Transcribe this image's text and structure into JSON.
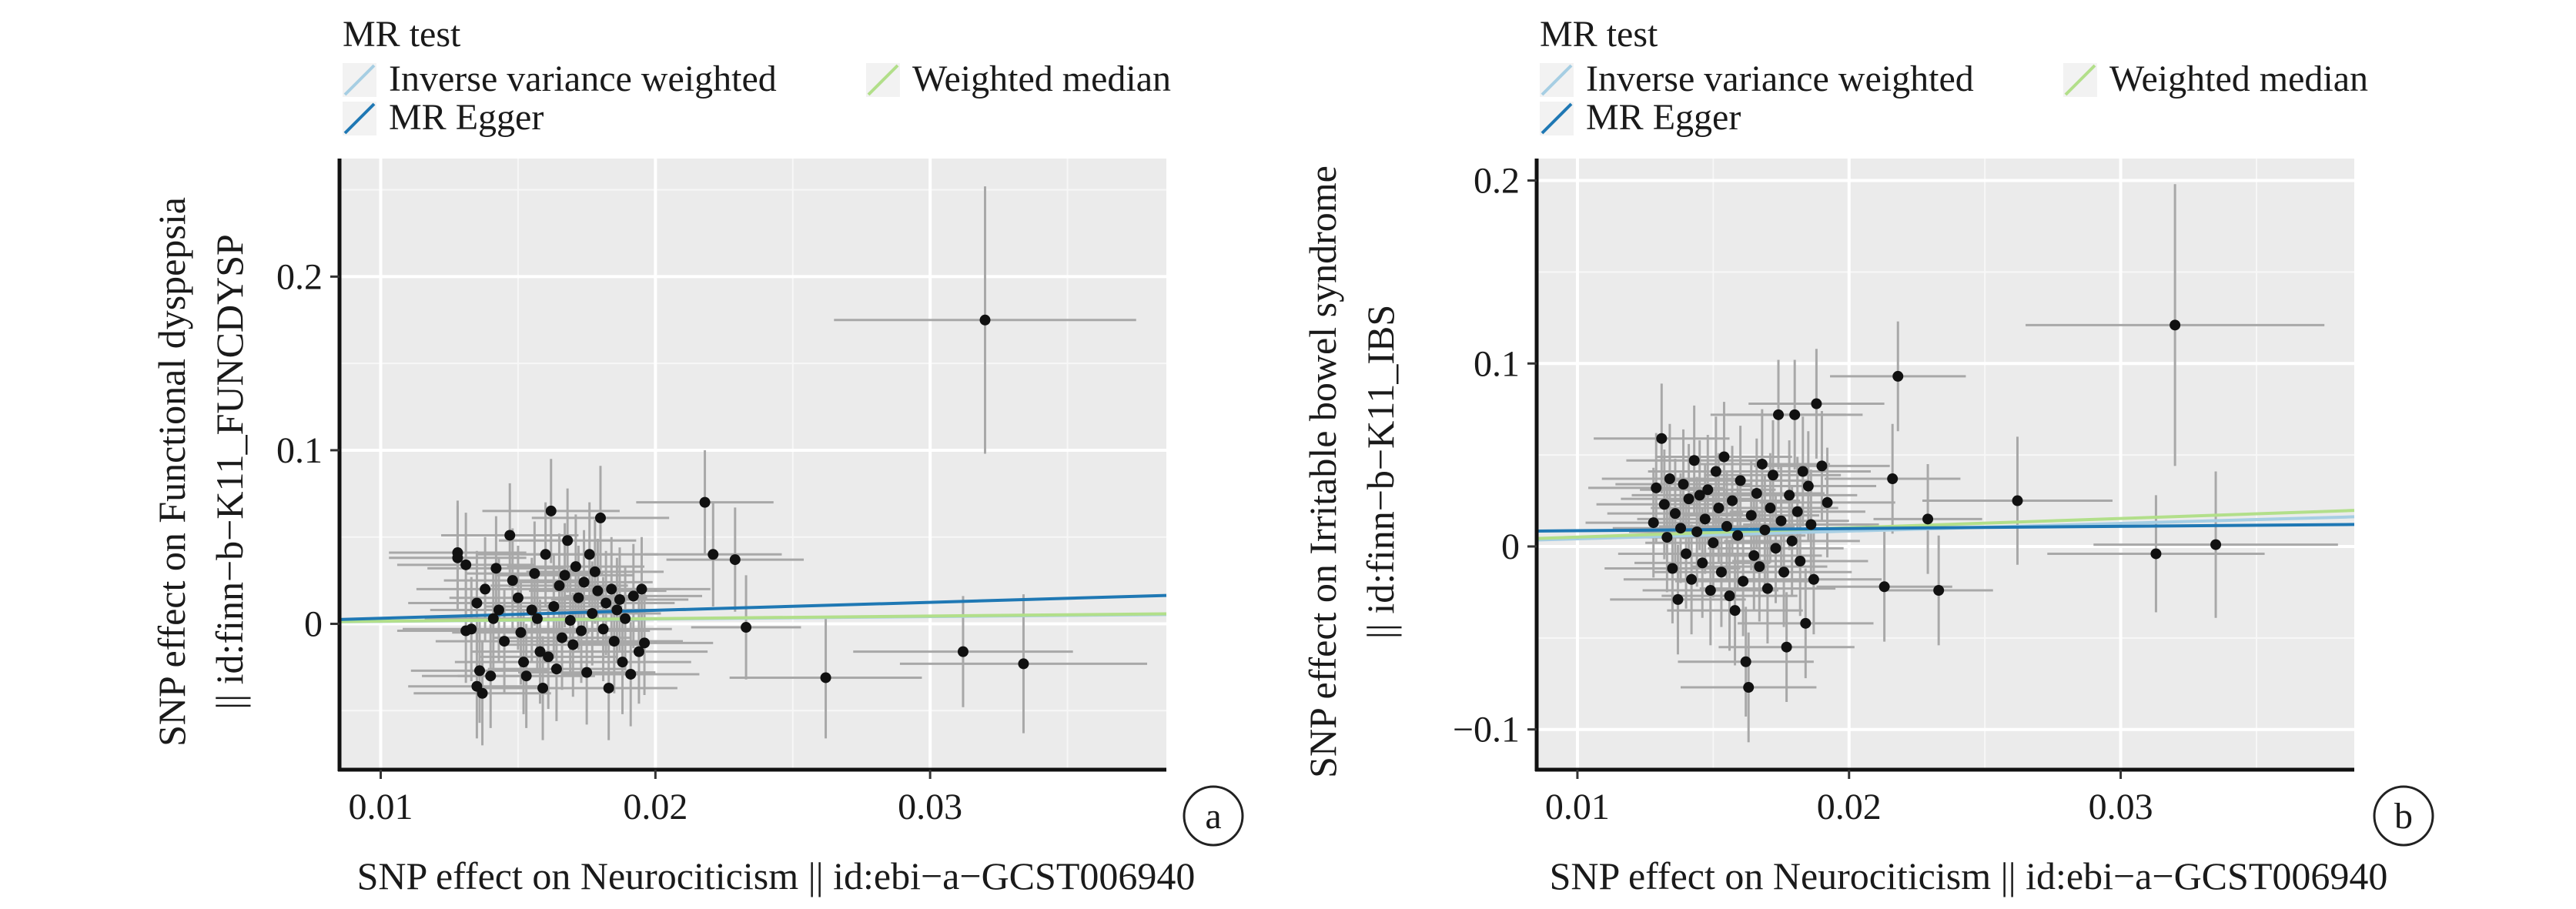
{
  "chart_data": [
    {
      "type": "scatter",
      "panel_label": "a",
      "legend": {
        "title": "MR test",
        "placement": "top-left",
        "entries": [
          {
            "name": "Inverse variance weighted",
            "color": "#a6cee3"
          },
          {
            "name": "Weighted median",
            "color": "#b2df8a"
          },
          {
            "name": "MR Egger",
            "color": "#1f78b4"
          }
        ]
      },
      "xlabel": "SNP effect on Neurociticism || id:ebi−a−GCST006940",
      "ylabel_lines": [
        "SNP effect on Functional dyspepsia",
        "|| id:finn−b−K11_FUNCDYSP"
      ],
      "xlim": [
        0.0085,
        0.0386
      ],
      "ylim": [
        -0.084,
        0.268
      ],
      "xticks": [
        {
          "value": 0.01,
          "label": "0.01"
        },
        {
          "value": 0.02,
          "label": "0.02"
        },
        {
          "value": 0.03,
          "label": "0.03"
        }
      ],
      "yticks": [
        {
          "value": 0.0,
          "label": "0"
        },
        {
          "value": 0.1,
          "label": "0.1"
        },
        {
          "value": 0.2,
          "label": "0.2"
        }
      ],
      "grid": true,
      "lines": [
        {
          "name": "Inverse variance weighted",
          "color": "#a6cee3",
          "intercept": 0,
          "slope": 0.14
        },
        {
          "name": "Weighted median",
          "color": "#b2df8a",
          "intercept": 0,
          "slope": 0.15
        },
        {
          "name": "MR Egger",
          "color": "#1f78b4",
          "intercept": -0.0014,
          "slope": 0.46
        }
      ],
      "points": [
        {
          "x": 0.032,
          "y": 0.175,
          "xerr": 0.0055,
          "yerr": 0.077
        },
        {
          "x": 0.0334,
          "y": -0.023,
          "xerr": 0.0045,
          "yerr": 0.04
        },
        {
          "x": 0.0312,
          "y": -0.016,
          "xerr": 0.004,
          "yerr": 0.032
        },
        {
          "x": 0.0262,
          "y": -0.031,
          "xerr": 0.0035,
          "yerr": 0.035
        },
        {
          "x": 0.0233,
          "y": -0.002,
          "xerr": 0.002,
          "yerr": 0.03
        },
        {
          "x": 0.0218,
          "y": 0.07,
          "xerr": 0.0025,
          "yerr": 0.03
        },
        {
          "x": 0.0221,
          "y": 0.04,
          "xerr": 0.0025,
          "yerr": 0.03
        },
        {
          "x": 0.0229,
          "y": 0.037,
          "xerr": 0.0025,
          "yerr": 0.03
        },
        {
          "x": 0.0128,
          "y": 0.041,
          "xerr": 0.0025,
          "yerr": 0.03
        },
        {
          "x": 0.0128,
          "y": 0.038,
          "xerr": 0.0025,
          "yerr": 0.03
        },
        {
          "x": 0.0131,
          "y": 0.034,
          "xerr": 0.0025,
          "yerr": 0.03
        },
        {
          "x": 0.0142,
          "y": 0.032,
          "xerr": 0.0025,
          "yerr": 0.03
        },
        {
          "x": 0.0138,
          "y": 0.02,
          "xerr": 0.0025,
          "yerr": 0.03
        },
        {
          "x": 0.0135,
          "y": 0.012,
          "xerr": 0.0025,
          "yerr": 0.03
        },
        {
          "x": 0.0131,
          "y": -0.004,
          "xerr": 0.0025,
          "yerr": 0.03
        },
        {
          "x": 0.0133,
          "y": -0.003,
          "xerr": 0.0025,
          "yerr": 0.03
        },
        {
          "x": 0.0136,
          "y": -0.027,
          "xerr": 0.0025,
          "yerr": 0.03
        },
        {
          "x": 0.0135,
          "y": -0.036,
          "xerr": 0.0025,
          "yerr": 0.03
        },
        {
          "x": 0.0137,
          "y": -0.04,
          "xerr": 0.0025,
          "yerr": 0.03
        },
        {
          "x": 0.014,
          "y": -0.03,
          "xerr": 0.0025,
          "yerr": 0.03
        },
        {
          "x": 0.0141,
          "y": 0.003,
          "xerr": 0.0025,
          "yerr": 0.03
        },
        {
          "x": 0.0143,
          "y": 0.008,
          "xerr": 0.0025,
          "yerr": 0.03
        },
        {
          "x": 0.0145,
          "y": -0.01,
          "xerr": 0.0025,
          "yerr": 0.03
        },
        {
          "x": 0.0147,
          "y": 0.051,
          "xerr": 0.0025,
          "yerr": 0.03
        },
        {
          "x": 0.0148,
          "y": 0.025,
          "xerr": 0.0025,
          "yerr": 0.03
        },
        {
          "x": 0.015,
          "y": 0.015,
          "xerr": 0.0025,
          "yerr": 0.03
        },
        {
          "x": 0.0151,
          "y": -0.005,
          "xerr": 0.0025,
          "yerr": 0.03
        },
        {
          "x": 0.0152,
          "y": -0.022,
          "xerr": 0.0025,
          "yerr": 0.03
        },
        {
          "x": 0.0153,
          "y": -0.03,
          "xerr": 0.0025,
          "yerr": 0.03
        },
        {
          "x": 0.0155,
          "y": 0.008,
          "xerr": 0.0025,
          "yerr": 0.03
        },
        {
          "x": 0.0156,
          "y": 0.029,
          "xerr": 0.0025,
          "yerr": 0.03
        },
        {
          "x": 0.0157,
          "y": 0.003,
          "xerr": 0.0025,
          "yerr": 0.03
        },
        {
          "x": 0.0158,
          "y": -0.016,
          "xerr": 0.0025,
          "yerr": 0.03
        },
        {
          "x": 0.0159,
          "y": -0.037,
          "xerr": 0.0025,
          "yerr": 0.03
        },
        {
          "x": 0.016,
          "y": 0.04,
          "xerr": 0.0025,
          "yerr": 0.03
        },
        {
          "x": 0.0161,
          "y": -0.019,
          "xerr": 0.0025,
          "yerr": 0.03
        },
        {
          "x": 0.0162,
          "y": 0.065,
          "xerr": 0.0025,
          "yerr": 0.03
        },
        {
          "x": 0.0163,
          "y": 0.01,
          "xerr": 0.0025,
          "yerr": 0.03
        },
        {
          "x": 0.0164,
          "y": -0.026,
          "xerr": 0.0025,
          "yerr": 0.03
        },
        {
          "x": 0.0165,
          "y": 0.022,
          "xerr": 0.0025,
          "yerr": 0.03
        },
        {
          "x": 0.0166,
          "y": -0.008,
          "xerr": 0.0025,
          "yerr": 0.03
        },
        {
          "x": 0.0167,
          "y": 0.028,
          "xerr": 0.0025,
          "yerr": 0.03
        },
        {
          "x": 0.0168,
          "y": 0.048,
          "xerr": 0.0025,
          "yerr": 0.03
        },
        {
          "x": 0.0169,
          "y": 0.002,
          "xerr": 0.0025,
          "yerr": 0.03
        },
        {
          "x": 0.017,
          "y": -0.012,
          "xerr": 0.0025,
          "yerr": 0.03
        },
        {
          "x": 0.0171,
          "y": 0.033,
          "xerr": 0.0025,
          "yerr": 0.03
        },
        {
          "x": 0.0172,
          "y": 0.015,
          "xerr": 0.0025,
          "yerr": 0.03
        },
        {
          "x": 0.0173,
          "y": -0.004,
          "xerr": 0.0025,
          "yerr": 0.03
        },
        {
          "x": 0.0174,
          "y": 0.024,
          "xerr": 0.0025,
          "yerr": 0.03
        },
        {
          "x": 0.0175,
          "y": -0.028,
          "xerr": 0.0025,
          "yerr": 0.03
        },
        {
          "x": 0.0176,
          "y": 0.04,
          "xerr": 0.0025,
          "yerr": 0.03
        },
        {
          "x": 0.0177,
          "y": 0.006,
          "xerr": 0.0025,
          "yerr": 0.03
        },
        {
          "x": 0.0178,
          "y": 0.03,
          "xerr": 0.0025,
          "yerr": 0.03
        },
        {
          "x": 0.0179,
          "y": 0.019,
          "xerr": 0.0025,
          "yerr": 0.03
        },
        {
          "x": 0.018,
          "y": 0.061,
          "xerr": 0.0025,
          "yerr": 0.03
        },
        {
          "x": 0.0181,
          "y": -0.003,
          "xerr": 0.0025,
          "yerr": 0.03
        },
        {
          "x": 0.0182,
          "y": 0.012,
          "xerr": 0.0025,
          "yerr": 0.03
        },
        {
          "x": 0.0183,
          "y": -0.037,
          "xerr": 0.0025,
          "yerr": 0.03
        },
        {
          "x": 0.0184,
          "y": 0.02,
          "xerr": 0.0025,
          "yerr": 0.03
        },
        {
          "x": 0.0185,
          "y": -0.01,
          "xerr": 0.0025,
          "yerr": 0.03
        },
        {
          "x": 0.0186,
          "y": 0.008,
          "xerr": 0.0025,
          "yerr": 0.03
        },
        {
          "x": 0.0187,
          "y": 0.014,
          "xerr": 0.0025,
          "yerr": 0.03
        },
        {
          "x": 0.0188,
          "y": -0.022,
          "xerr": 0.0025,
          "yerr": 0.03
        },
        {
          "x": 0.0189,
          "y": 0.003,
          "xerr": 0.0025,
          "yerr": 0.03
        },
        {
          "x": 0.0191,
          "y": -0.029,
          "xerr": 0.0025,
          "yerr": 0.03
        },
        {
          "x": 0.0192,
          "y": 0.016,
          "xerr": 0.0025,
          "yerr": 0.03
        },
        {
          "x": 0.0194,
          "y": -0.016,
          "xerr": 0.0025,
          "yerr": 0.03
        },
        {
          "x": 0.0195,
          "y": 0.02,
          "xerr": 0.0025,
          "yerr": 0.03
        },
        {
          "x": 0.0196,
          "y": -0.011,
          "xerr": 0.0025,
          "yerr": 0.03
        }
      ]
    },
    {
      "type": "scatter",
      "panel_label": "b",
      "legend": {
        "title": "MR test",
        "placement": "top-left",
        "entries": [
          {
            "name": "Inverse variance weighted",
            "color": "#a6cee3"
          },
          {
            "name": "Weighted median",
            "color": "#b2df8a"
          },
          {
            "name": "MR Egger",
            "color": "#1f78b4"
          }
        ]
      },
      "xlabel": "SNP effect on Neurociticism || id:ebi−a−GCST006940",
      "ylabel_lines": [
        "SNP effect on Irritable bowel syndrome",
        "|| id:finn−b−K11_IBS"
      ],
      "xlim": [
        0.0085,
        0.0386
      ],
      "ylim": [
        -0.122,
        0.212
      ],
      "xticks": [
        {
          "value": 0.01,
          "label": "0.01"
        },
        {
          "value": 0.02,
          "label": "0.02"
        },
        {
          "value": 0.03,
          "label": "0.03"
        }
      ],
      "yticks": [
        {
          "value": -0.1,
          "label": "−0.1"
        },
        {
          "value": 0.0,
          "label": "0"
        },
        {
          "value": 0.1,
          "label": "0.1"
        },
        {
          "value": 0.2,
          "label": "0.2"
        }
      ],
      "grid": true,
      "lines": [
        {
          "name": "Inverse variance weighted",
          "color": "#a6cee3",
          "intercept": 0,
          "slope": 0.42
        },
        {
          "name": "Weighted median",
          "color": "#b2df8a",
          "intercept": 0,
          "slope": 0.51
        },
        {
          "name": "MR Egger",
          "color": "#1f78b4",
          "intercept": 0.0074,
          "slope": 0.12
        }
      ],
      "points": [
        {
          "x": 0.032,
          "y": 0.121,
          "xerr": 0.0055,
          "yerr": 0.077
        },
        {
          "x": 0.0335,
          "y": 0.001,
          "xerr": 0.0045,
          "yerr": 0.04
        },
        {
          "x": 0.0313,
          "y": -0.004,
          "xerr": 0.004,
          "yerr": 0.032
        },
        {
          "x": 0.0262,
          "y": 0.025,
          "xerr": 0.0035,
          "yerr": 0.035
        },
        {
          "x": 0.0233,
          "y": -0.024,
          "xerr": 0.002,
          "yerr": 0.03
        },
        {
          "x": 0.0229,
          "y": 0.015,
          "xerr": 0.002,
          "yerr": 0.03
        },
        {
          "x": 0.0218,
          "y": 0.093,
          "xerr": 0.0025,
          "yerr": 0.03
        },
        {
          "x": 0.0216,
          "y": 0.037,
          "xerr": 0.0025,
          "yerr": 0.03
        },
        {
          "x": 0.0213,
          "y": -0.022,
          "xerr": 0.0025,
          "yerr": 0.03
        },
        {
          "x": 0.0128,
          "y": 0.013,
          "xerr": 0.0025,
          "yerr": 0.03
        },
        {
          "x": 0.0129,
          "y": 0.032,
          "xerr": 0.0025,
          "yerr": 0.03
        },
        {
          "x": 0.0131,
          "y": 0.059,
          "xerr": 0.0025,
          "yerr": 0.03
        },
        {
          "x": 0.0132,
          "y": 0.023,
          "xerr": 0.0025,
          "yerr": 0.03
        },
        {
          "x": 0.0133,
          "y": 0.005,
          "xerr": 0.0025,
          "yerr": 0.03
        },
        {
          "x": 0.0134,
          "y": 0.037,
          "xerr": 0.0025,
          "yerr": 0.03
        },
        {
          "x": 0.0135,
          "y": -0.012,
          "xerr": 0.0025,
          "yerr": 0.03
        },
        {
          "x": 0.0136,
          "y": 0.018,
          "xerr": 0.0025,
          "yerr": 0.03
        },
        {
          "x": 0.0137,
          "y": -0.029,
          "xerr": 0.0025,
          "yerr": 0.03
        },
        {
          "x": 0.0138,
          "y": 0.01,
          "xerr": 0.0025,
          "yerr": 0.03
        },
        {
          "x": 0.0139,
          "y": 0.034,
          "xerr": 0.0025,
          "yerr": 0.03
        },
        {
          "x": 0.014,
          "y": -0.004,
          "xerr": 0.0025,
          "yerr": 0.03
        },
        {
          "x": 0.0141,
          "y": 0.026,
          "xerr": 0.0025,
          "yerr": 0.03
        },
        {
          "x": 0.0142,
          "y": -0.018,
          "xerr": 0.0025,
          "yerr": 0.03
        },
        {
          "x": 0.0143,
          "y": 0.047,
          "xerr": 0.0025,
          "yerr": 0.03
        },
        {
          "x": 0.0144,
          "y": 0.008,
          "xerr": 0.0025,
          "yerr": 0.03
        },
        {
          "x": 0.0145,
          "y": 0.028,
          "xerr": 0.0025,
          "yerr": 0.03
        },
        {
          "x": 0.0146,
          "y": -0.009,
          "xerr": 0.0025,
          "yerr": 0.03
        },
        {
          "x": 0.0147,
          "y": 0.015,
          "xerr": 0.0025,
          "yerr": 0.03
        },
        {
          "x": 0.0148,
          "y": 0.031,
          "xerr": 0.0025,
          "yerr": 0.03
        },
        {
          "x": 0.0149,
          "y": -0.024,
          "xerr": 0.0025,
          "yerr": 0.03
        },
        {
          "x": 0.015,
          "y": 0.002,
          "xerr": 0.0025,
          "yerr": 0.03
        },
        {
          "x": 0.0151,
          "y": 0.041,
          "xerr": 0.0025,
          "yerr": 0.03
        },
        {
          "x": 0.0152,
          "y": 0.021,
          "xerr": 0.0025,
          "yerr": 0.03
        },
        {
          "x": 0.0153,
          "y": -0.014,
          "xerr": 0.0025,
          "yerr": 0.03
        },
        {
          "x": 0.0154,
          "y": 0.049,
          "xerr": 0.0025,
          "yerr": 0.03
        },
        {
          "x": 0.0155,
          "y": 0.011,
          "xerr": 0.0025,
          "yerr": 0.03
        },
        {
          "x": 0.0156,
          "y": -0.027,
          "xerr": 0.0025,
          "yerr": 0.03
        },
        {
          "x": 0.0157,
          "y": 0.025,
          "xerr": 0.0025,
          "yerr": 0.03
        },
        {
          "x": 0.0158,
          "y": -0.035,
          "xerr": 0.0025,
          "yerr": 0.03
        },
        {
          "x": 0.0159,
          "y": 0.006,
          "xerr": 0.0025,
          "yerr": 0.03
        },
        {
          "x": 0.016,
          "y": 0.036,
          "xerr": 0.0025,
          "yerr": 0.03
        },
        {
          "x": 0.0161,
          "y": -0.019,
          "xerr": 0.0025,
          "yerr": 0.03
        },
        {
          "x": 0.0162,
          "y": -0.063,
          "xerr": 0.0025,
          "yerr": 0.03
        },
        {
          "x": 0.0163,
          "y": -0.077,
          "xerr": 0.0025,
          "yerr": 0.03
        },
        {
          "x": 0.0164,
          "y": 0.017,
          "xerr": 0.0025,
          "yerr": 0.03
        },
        {
          "x": 0.0165,
          "y": -0.005,
          "xerr": 0.0025,
          "yerr": 0.03
        },
        {
          "x": 0.0166,
          "y": 0.029,
          "xerr": 0.0025,
          "yerr": 0.03
        },
        {
          "x": 0.0167,
          "y": -0.011,
          "xerr": 0.0025,
          "yerr": 0.03
        },
        {
          "x": 0.0168,
          "y": 0.045,
          "xerr": 0.0025,
          "yerr": 0.03
        },
        {
          "x": 0.0169,
          "y": 0.009,
          "xerr": 0.0025,
          "yerr": 0.03
        },
        {
          "x": 0.017,
          "y": -0.023,
          "xerr": 0.0025,
          "yerr": 0.03
        },
        {
          "x": 0.0171,
          "y": 0.021,
          "xerr": 0.0025,
          "yerr": 0.03
        },
        {
          "x": 0.0172,
          "y": 0.039,
          "xerr": 0.0025,
          "yerr": 0.03
        },
        {
          "x": 0.0173,
          "y": -0.001,
          "xerr": 0.0025,
          "yerr": 0.03
        },
        {
          "x": 0.0174,
          "y": 0.072,
          "xerr": 0.0025,
          "yerr": 0.03
        },
        {
          "x": 0.0175,
          "y": 0.014,
          "xerr": 0.0025,
          "yerr": 0.03
        },
        {
          "x": 0.0176,
          "y": -0.014,
          "xerr": 0.0025,
          "yerr": 0.03
        },
        {
          "x": 0.0177,
          "y": -0.055,
          "xerr": 0.0025,
          "yerr": 0.03
        },
        {
          "x": 0.0178,
          "y": 0.028,
          "xerr": 0.0025,
          "yerr": 0.03
        },
        {
          "x": 0.0179,
          "y": 0.003,
          "xerr": 0.0025,
          "yerr": 0.03
        },
        {
          "x": 0.018,
          "y": 0.072,
          "xerr": 0.0025,
          "yerr": 0.03
        },
        {
          "x": 0.0181,
          "y": 0.019,
          "xerr": 0.0025,
          "yerr": 0.03
        },
        {
          "x": 0.0182,
          "y": -0.008,
          "xerr": 0.0025,
          "yerr": 0.03
        },
        {
          "x": 0.0183,
          "y": 0.041,
          "xerr": 0.0025,
          "yerr": 0.03
        },
        {
          "x": 0.0184,
          "y": -0.042,
          "xerr": 0.0025,
          "yerr": 0.03
        },
        {
          "x": 0.0185,
          "y": 0.033,
          "xerr": 0.0025,
          "yerr": 0.03
        },
        {
          "x": 0.0186,
          "y": 0.012,
          "xerr": 0.0025,
          "yerr": 0.03
        },
        {
          "x": 0.0187,
          "y": -0.018,
          "xerr": 0.0025,
          "yerr": 0.03
        },
        {
          "x": 0.0188,
          "y": 0.078,
          "xerr": 0.0025,
          "yerr": 0.03
        },
        {
          "x": 0.019,
          "y": 0.044,
          "xerr": 0.0025,
          "yerr": 0.03
        },
        {
          "x": 0.0192,
          "y": 0.024,
          "xerr": 0.0025,
          "yerr": 0.03
        }
      ]
    }
  ]
}
